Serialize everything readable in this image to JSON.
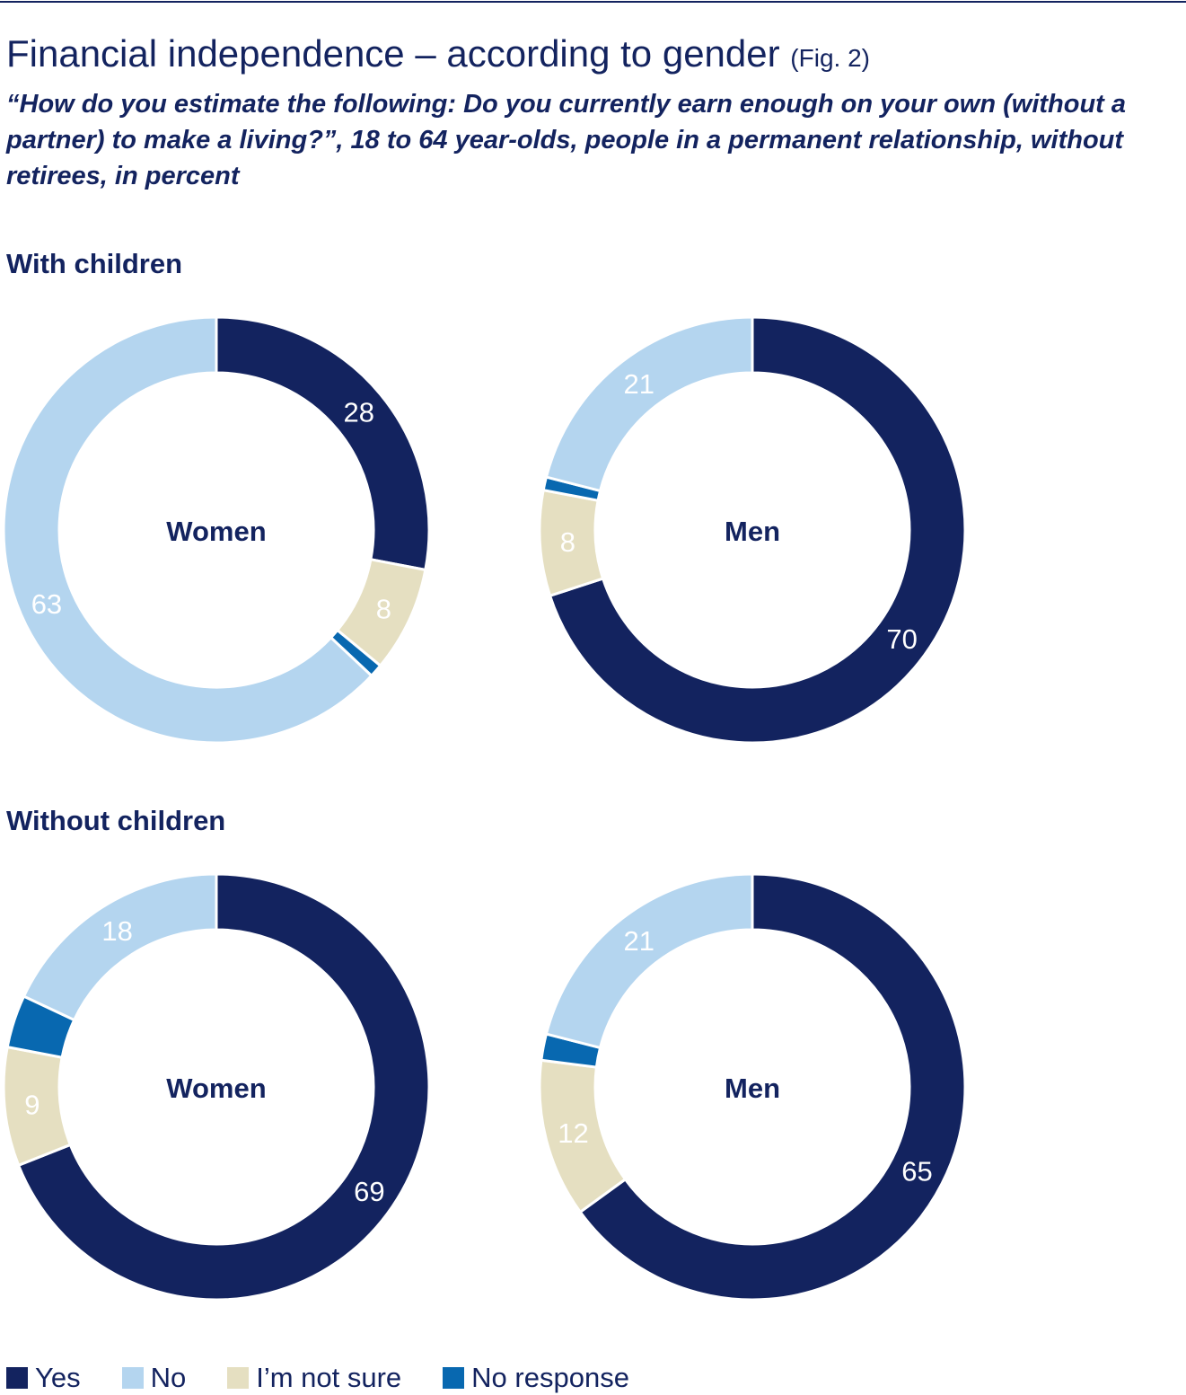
{
  "header": {
    "title": "Financial independence – according to gender",
    "fig": "(Fig. 2)",
    "subtitle": "“How do you estimate the following: Do you currently earn enough on your own (without a partner) to make a living?”, 18 to 64 year-olds, people in a permanent relationship, without retirees, in percent"
  },
  "sections": [
    {
      "label": "With children"
    },
    {
      "label": "Without children"
    }
  ],
  "legend": [
    {
      "label": "Yes",
      "color": "#13235f"
    },
    {
      "label": "No",
      "color": "#b4d5ef"
    },
    {
      "label": "I’m not sure",
      "color": "#e5dfc1"
    },
    {
      "label": "No response",
      "color": "#0868b0"
    }
  ],
  "chart_data": [
    {
      "type": "pie",
      "variant": "donut",
      "group": "With children",
      "center_label": "Women",
      "categories": [
        "Yes",
        "I’m not sure",
        "No response",
        "No"
      ],
      "values": [
        28,
        8,
        1,
        63
      ],
      "labels": [
        "28",
        "8",
        "",
        "63"
      ]
    },
    {
      "type": "pie",
      "variant": "donut",
      "group": "With children",
      "center_label": "Men",
      "categories": [
        "Yes",
        "I’m not sure",
        "No response",
        "No"
      ],
      "values": [
        70,
        8,
        1,
        21
      ],
      "labels": [
        "70",
        "8",
        "",
        "21"
      ]
    },
    {
      "type": "pie",
      "variant": "donut",
      "group": "Without children",
      "center_label": "Women",
      "categories": [
        "Yes",
        "I’m not sure",
        "No response",
        "No"
      ],
      "values": [
        69,
        9,
        4,
        18
      ],
      "labels": [
        "69",
        "9",
        "",
        "18"
      ]
    },
    {
      "type": "pie",
      "variant": "donut",
      "group": "Without children",
      "center_label": "Men",
      "categories": [
        "Yes",
        "I’m not sure",
        "No response",
        "No"
      ],
      "values": [
        65,
        12,
        2,
        21
      ],
      "labels": [
        "65",
        "12",
        "",
        "21"
      ]
    }
  ]
}
